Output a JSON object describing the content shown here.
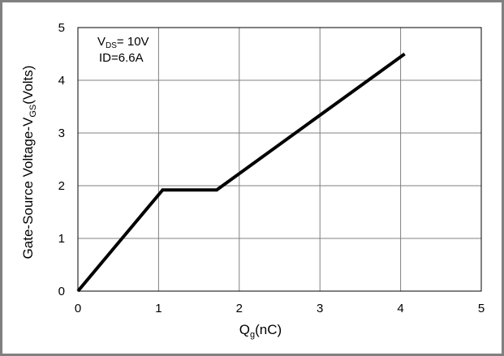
{
  "chart_data": {
    "type": "line",
    "xlabel": {
      "main": "Q",
      "sub": "g",
      "rest": "(nC)"
    },
    "ylabel": {
      "main": "Gate-Source Voltage-V",
      "sub": "GS",
      "rest": "(Volts)"
    },
    "xlim": [
      0,
      5
    ],
    "ylim": [
      0,
      5
    ],
    "x_ticks": [
      "0",
      "1",
      "2",
      "3",
      "4",
      "5"
    ],
    "y_ticks": [
      "0",
      "1",
      "2",
      "3",
      "4",
      "5"
    ],
    "grid": true,
    "annotation": {
      "line1": {
        "main": "V",
        "sub": "DS",
        "rest": "= 10V"
      },
      "line2": "ID=6.6A"
    },
    "series": [
      {
        "x": [
          0,
          1.05,
          1.72,
          4.05
        ],
        "y": [
          0,
          1.92,
          1.92,
          4.5
        ]
      }
    ]
  }
}
